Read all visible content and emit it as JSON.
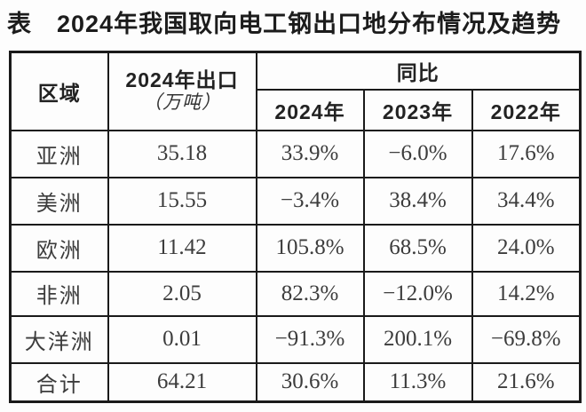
{
  "title": "表　2024年我国取向电工钢出口地分布情况及趋势",
  "table": {
    "header": {
      "region": "区域",
      "export_line1": "2024年出口",
      "export_unit": "（万吨）",
      "yoy": "同比",
      "years": [
        "2024年",
        "2023年",
        "2022年"
      ]
    },
    "rows": [
      {
        "region": "亚洲",
        "export": "35.18",
        "y2024": "33.9%",
        "y2023": "−6.0%",
        "y2022": "17.6%"
      },
      {
        "region": "美洲",
        "export": "15.55",
        "y2024": "−3.4%",
        "y2023": "38.4%",
        "y2022": "34.4%"
      },
      {
        "region": "欧洲",
        "export": "11.42",
        "y2024": "105.8%",
        "y2023": "68.5%",
        "y2022": "24.0%"
      },
      {
        "region": "非洲",
        "export": "2.05",
        "y2024": "82.3%",
        "y2023": "−12.0%",
        "y2022": "14.2%"
      },
      {
        "region": "大洋洲",
        "export": "0.01",
        "y2024": "−91.3%",
        "y2023": "200.1%",
        "y2022": "−69.8%"
      },
      {
        "region": "合计",
        "export": "64.21",
        "y2024": "30.6%",
        "y2023": "11.3%",
        "y2022": "21.6%"
      }
    ]
  }
}
